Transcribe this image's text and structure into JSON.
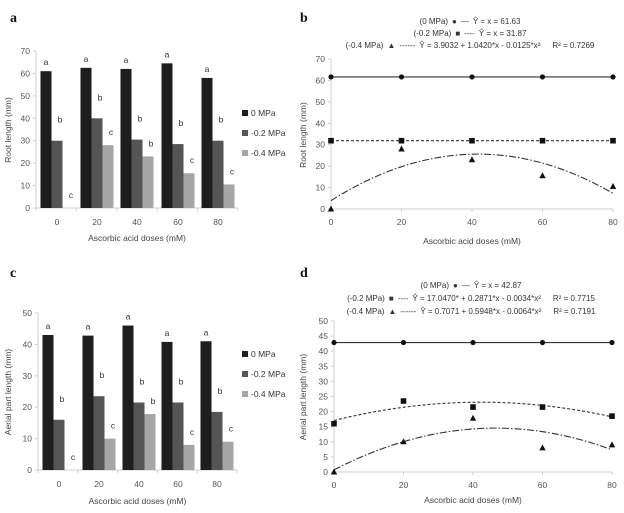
{
  "chart_data": [
    {
      "panel": "a",
      "type": "bar",
      "xlabel": "Ascorbic acid doses (mM)",
      "ylabel": "Root length (mm)",
      "ylim": [
        0,
        70
      ],
      "yticks": [
        "0",
        "10",
        "20",
        "30",
        "40",
        "50",
        "60",
        "70"
      ],
      "categories": [
        "0",
        "20",
        "40",
        "60",
        "80"
      ],
      "series": [
        {
          "name": "0 MPa",
          "color": "#1e1e1e",
          "values": [
            61,
            62.5,
            62,
            64.5,
            58
          ],
          "letters": [
            "a",
            "a",
            "a",
            "a",
            "a"
          ]
        },
        {
          "name": "-0.2 MPa",
          "color": "#555555",
          "values": [
            30,
            40,
            30.5,
            28.5,
            30
          ],
          "letters": [
            "b",
            "b",
            "b",
            "b",
            "b"
          ]
        },
        {
          "name": "-0.4 MPa",
          "color": "#a6a6a6",
          "values": [
            0,
            28,
            23,
            15.5,
            10.5
          ],
          "letters": [
            "c",
            "c",
            "b",
            "c",
            "c"
          ]
        }
      ],
      "legend": "right"
    },
    {
      "panel": "b",
      "type": "scatter",
      "xlabel": "Ascorbic acid doses (mM)",
      "ylabel": "Root length (mm)",
      "xlim": [
        0,
        80
      ],
      "ylim": [
        0,
        70
      ],
      "xticks": [
        "0",
        "20",
        "40",
        "60",
        "80"
      ],
      "yticks": [
        "0",
        "10",
        "20",
        "30",
        "40",
        "50",
        "60",
        "70"
      ],
      "x": [
        0,
        20,
        40,
        60,
        80
      ],
      "series": [
        {
          "name": "(0 MPa)",
          "marker": "circle",
          "line": "solid",
          "values": [
            61.63,
            61.63,
            61.63,
            61.63,
            61.63
          ],
          "fit": {
            "a": 61.63,
            "b": 0,
            "c": 0
          },
          "equation": "Ŷ = x = 61.63",
          "r2": ""
        },
        {
          "name": "(-0.2 MPa)",
          "marker": "square",
          "line": "dashed",
          "values": [
            31.87,
            31.87,
            31.87,
            31.87,
            31.87
          ],
          "fit": {
            "a": 31.87,
            "b": 0,
            "c": 0
          },
          "equation": "Ŷ = x = 31.87",
          "r2": ""
        },
        {
          "name": "(-0.4 MPa)",
          "marker": "triangle",
          "line": "dashdot",
          "values": [
            0,
            28,
            23,
            15.5,
            10.5
          ],
          "fit": {
            "a": 3.9032,
            "b": 1.042,
            "c": -0.0125
          },
          "equation": "Ŷ = 3.9032 + 1.0420*x - 0.0125*x²",
          "r2": "R² = 0.7269"
        }
      ]
    },
    {
      "panel": "c",
      "type": "bar",
      "xlabel": "Ascorbic acid doses (mM)",
      "ylabel": "Aerial part length (mm)",
      "ylim": [
        0,
        50
      ],
      "yticks": [
        "0",
        "10",
        "20",
        "30",
        "40",
        "50"
      ],
      "categories": [
        "0",
        "20",
        "40",
        "60",
        "80"
      ],
      "series": [
        {
          "name": "0 MPa",
          "color": "#1e1e1e",
          "values": [
            43,
            42.8,
            46,
            40.8,
            41
          ],
          "letters": [
            "a",
            "a",
            "a",
            "a",
            "a"
          ]
        },
        {
          "name": "-0.2 MPa",
          "color": "#555555",
          "values": [
            16,
            23.5,
            21.5,
            21.5,
            18.5
          ],
          "letters": [
            "b",
            "b",
            "b",
            "b",
            "b"
          ]
        },
        {
          "name": "-0.4 MPa",
          "color": "#a6a6a6",
          "values": [
            0,
            10,
            17.8,
            8,
            9
          ],
          "letters": [
            "c",
            "c",
            "b",
            "c",
            "c"
          ]
        }
      ],
      "legend": "right"
    },
    {
      "panel": "d",
      "type": "scatter",
      "xlabel": "Ascorbic acid doses (mM)",
      "ylabel": "Aerial part length (mm)",
      "xlim": [
        0,
        80
      ],
      "ylim": [
        0,
        50
      ],
      "xticks": [
        "0",
        "20",
        "40",
        "60",
        "80"
      ],
      "yticks": [
        "0",
        "5",
        "10",
        "15",
        "20",
        "25",
        "30",
        "35",
        "40",
        "45",
        "50"
      ],
      "x": [
        0,
        20,
        40,
        60,
        80
      ],
      "series": [
        {
          "name": "(0 MPa)",
          "marker": "circle",
          "line": "solid",
          "values": [
            42.87,
            42.87,
            42.87,
            42.87,
            42.87
          ],
          "fit": {
            "a": 42.87,
            "b": 0,
            "c": 0
          },
          "equation": "Ŷ = x = 42.87",
          "r2": ""
        },
        {
          "name": "(-0.2 MPa)",
          "marker": "square",
          "line": "dashed",
          "values": [
            16,
            23.5,
            21.5,
            21.5,
            18.5
          ],
          "fit": {
            "a": 17.047,
            "b": 0.2871,
            "c": -0.0034
          },
          "equation": "Ŷ = 17.0470* + 0.2871*x - 0.0034*x²",
          "r2": "R² = 0.7715"
        },
        {
          "name": "(-0.4 MPa)",
          "marker": "triangle",
          "line": "dashdot",
          "values": [
            0,
            10,
            17.8,
            8,
            9
          ],
          "fit": {
            "a": 0.7071,
            "b": 0.5948,
            "c": -0.0064
          },
          "equation": "Ŷ = 0.7071 + 0.5948*x - 0.0064*x²",
          "r2": "R² = 0.7191"
        }
      ]
    }
  ]
}
